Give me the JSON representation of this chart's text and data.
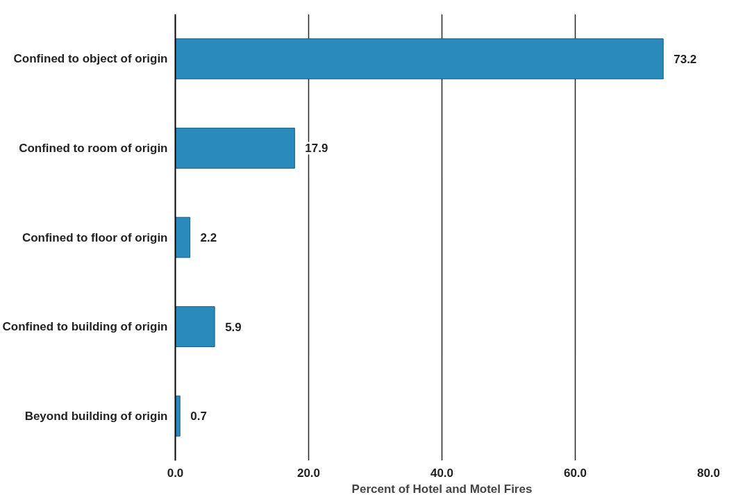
{
  "chart_data": {
    "type": "bar",
    "orientation": "horizontal",
    "xlabel": "Percent of Hotel and Motel Fires",
    "categories": [
      "Confined to object of origin",
      "Confined to room of origin",
      "Confined to floor of origin",
      "Confined to building of origin",
      "Beyond building of origin"
    ],
    "values": [
      73.2,
      17.9,
      2.2,
      5.9,
      0.7
    ],
    "color": "#2a8abb",
    "xlim": [
      0,
      80
    ],
    "xticks": [
      {
        "value": 0,
        "label": "0.0"
      },
      {
        "value": 20,
        "label": "20.0"
      },
      {
        "value": 40,
        "label": "40.0"
      },
      {
        "value": 60,
        "label": "60.0"
      },
      {
        "value": 80,
        "label": "80.0"
      }
    ],
    "grid": "x",
    "data_labels": true
  }
}
